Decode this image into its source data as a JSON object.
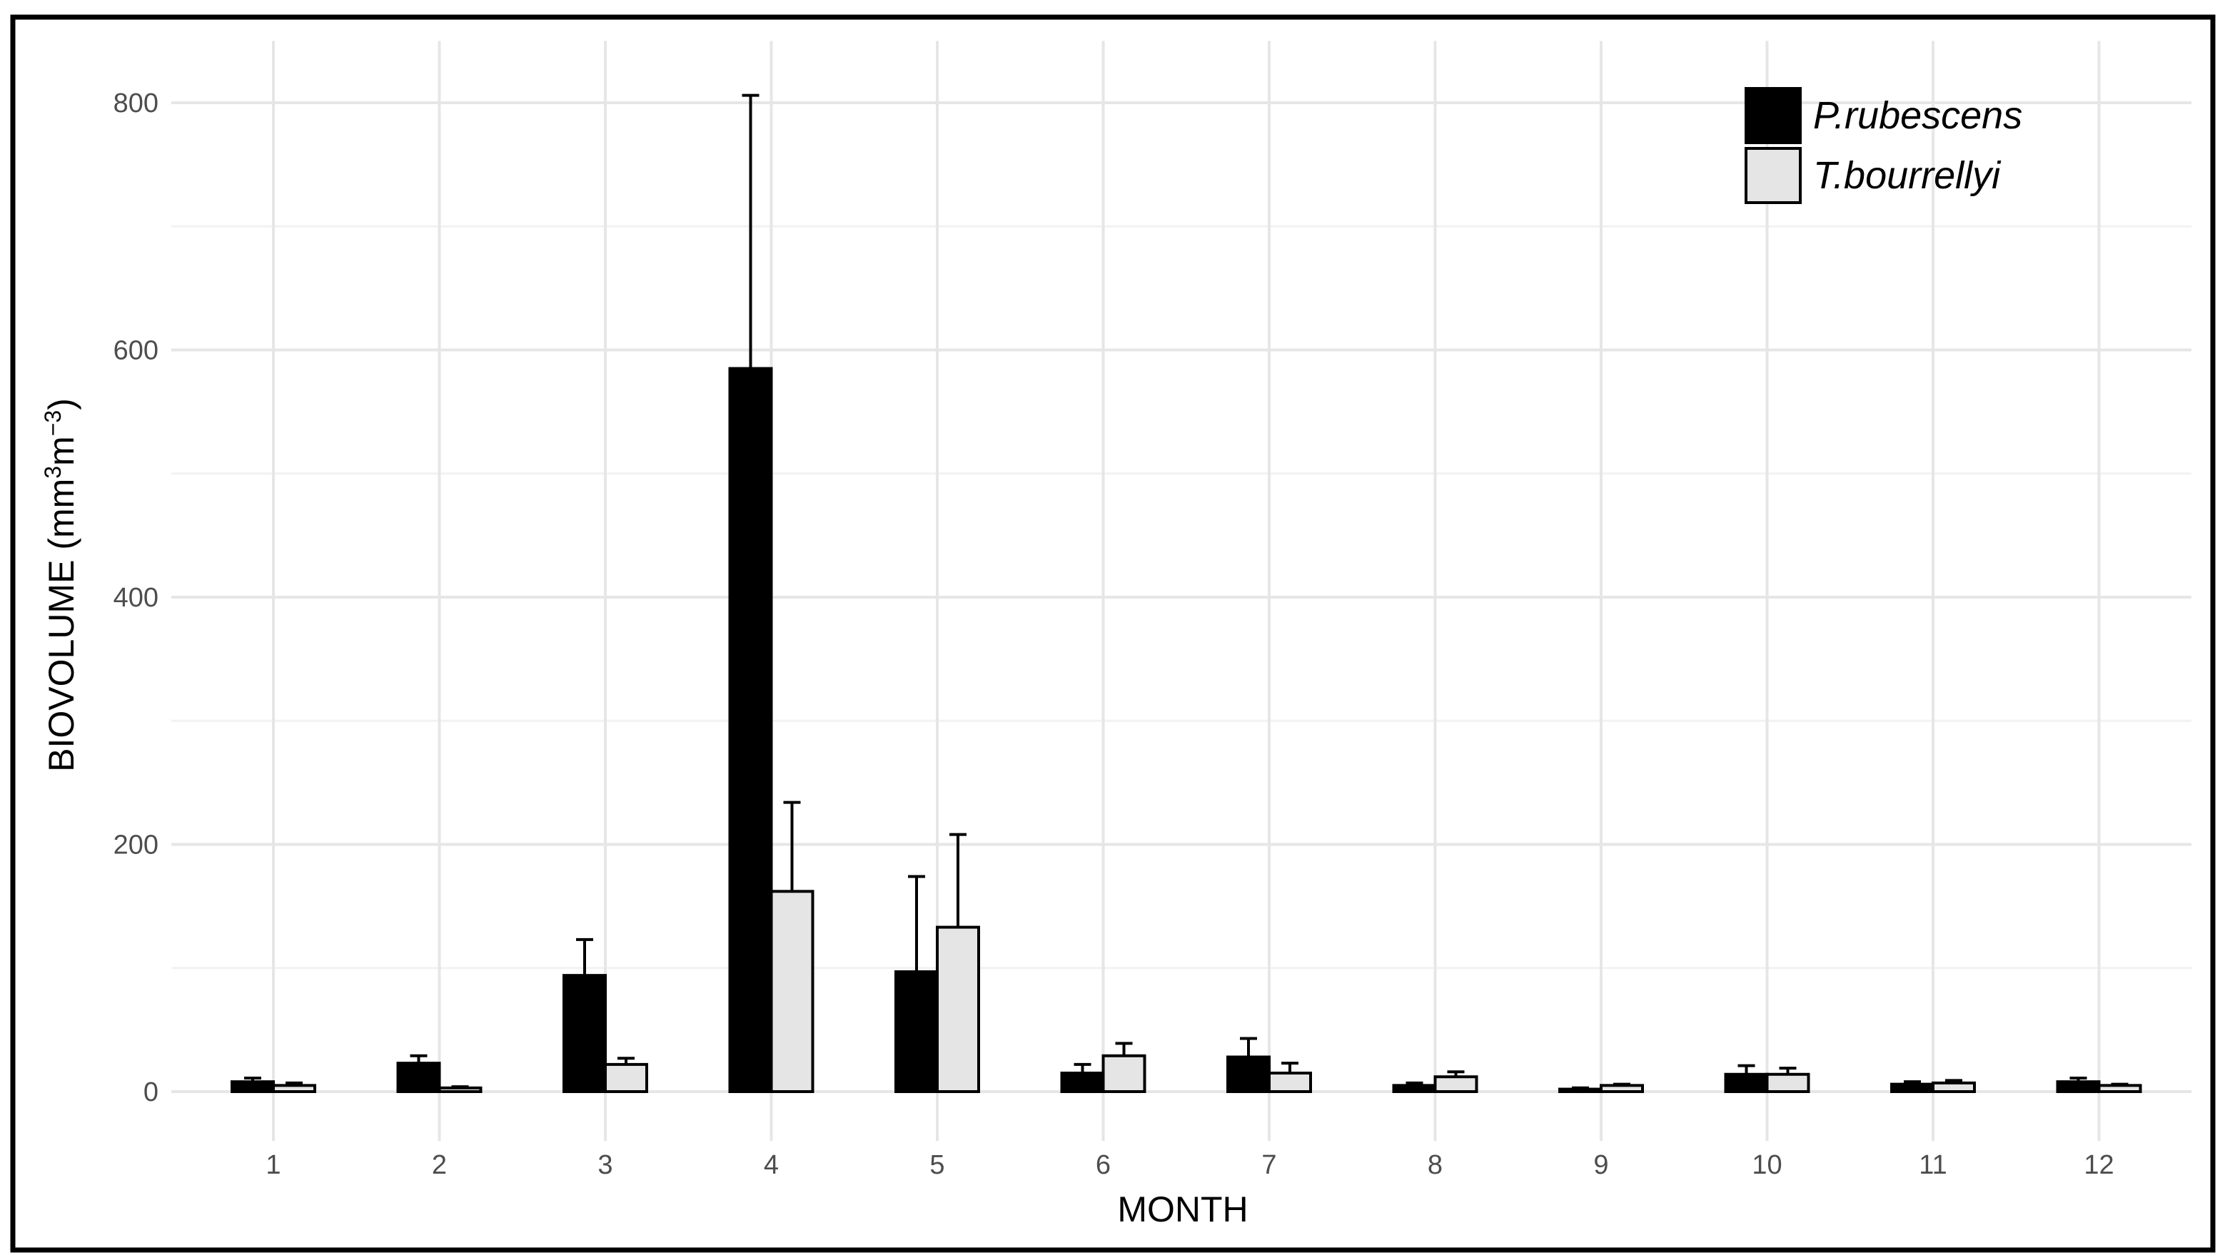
{
  "chart_data": {
    "type": "bar",
    "xlabel": "MONTH",
    "ylabel_parts": [
      "BIOVOLUME (mm",
      "3",
      "m",
      "−3",
      ")"
    ],
    "categories": [
      "1",
      "2",
      "3",
      "4",
      "5",
      "6",
      "7",
      "8",
      "9",
      "10",
      "11",
      "12"
    ],
    "ylim": [
      -40,
      850
    ],
    "yticks": [
      0,
      200,
      400,
      600,
      800
    ],
    "grid": true,
    "legend_position": "top-right",
    "series": [
      {
        "name": "P.rubescens",
        "color": "#000000",
        "values": [
          8,
          23,
          94,
          585,
          97,
          15,
          28,
          5,
          2,
          14,
          6,
          8
        ],
        "error": [
          3,
          6,
          29,
          221,
          77,
          7,
          15,
          2,
          1,
          7,
          2,
          3
        ]
      },
      {
        "name": "T.bourrellyi",
        "color": "#e5e5e5",
        "values": [
          5,
          3,
          22,
          162,
          133,
          29,
          15,
          12,
          5,
          14,
          7,
          5
        ],
        "error": [
          2,
          1,
          5,
          72,
          75,
          10,
          8,
          4,
          1,
          5,
          2,
          1
        ]
      }
    ]
  }
}
